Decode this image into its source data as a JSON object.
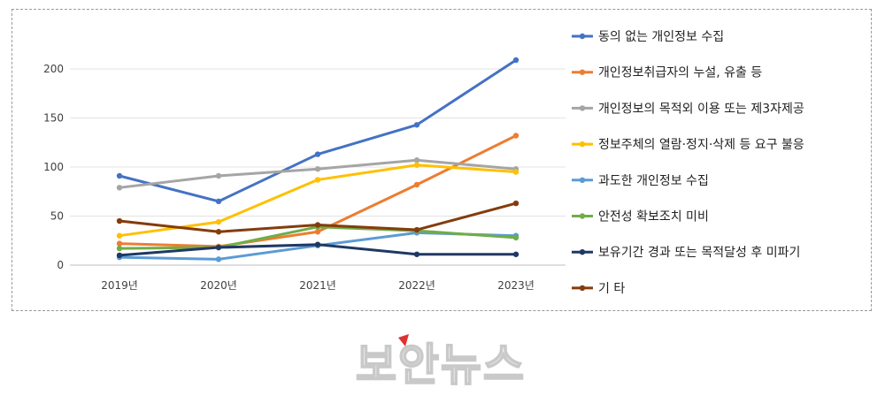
{
  "chart_data": {
    "type": "line",
    "categories": [
      "2019년",
      "2020년",
      "2021년",
      "2022년",
      "2023년"
    ],
    "ylim": [
      0,
      200
    ],
    "yticks": [
      0,
      50,
      100,
      150,
      200
    ],
    "grid": true,
    "legend_position": "right",
    "series": [
      {
        "name": "동의 없는 개인정보 수집",
        "color": "#4472c4",
        "values": [
          91,
          65,
          113,
          143,
          209
        ]
      },
      {
        "name": "개인정보취급자의 누설, 유출 등",
        "color": "#ed7d31",
        "values": [
          22,
          19,
          34,
          82,
          132
        ]
      },
      {
        "name": "개인정보의 목적외 이용 또는 제3자제공",
        "color": "#a5a5a5",
        "values": [
          79,
          91,
          98,
          107,
          98
        ]
      },
      {
        "name": "정보주체의 열람·정지·삭제 등 요구 불응",
        "color": "#ffc000",
        "values": [
          30,
          44,
          87,
          102,
          95
        ]
      },
      {
        "name": "과도한 개인정보 수집",
        "color": "#5b9bd5",
        "values": [
          8,
          6,
          20,
          33,
          30
        ]
      },
      {
        "name": "안전성 확보조치 미비",
        "color": "#70ad47",
        "values": [
          17,
          18,
          39,
          35,
          28
        ]
      },
      {
        "name": "보유기간 경과 또는 목적달성 후 미파기",
        "color": "#1f3864",
        "values": [
          10,
          18,
          21,
          11,
          11
        ]
      },
      {
        "name": "기 타",
        "color": "#843c0c",
        "values": [
          45,
          34,
          41,
          36,
          63
        ]
      }
    ]
  },
  "watermark": {
    "text": "보안뉴스"
  }
}
